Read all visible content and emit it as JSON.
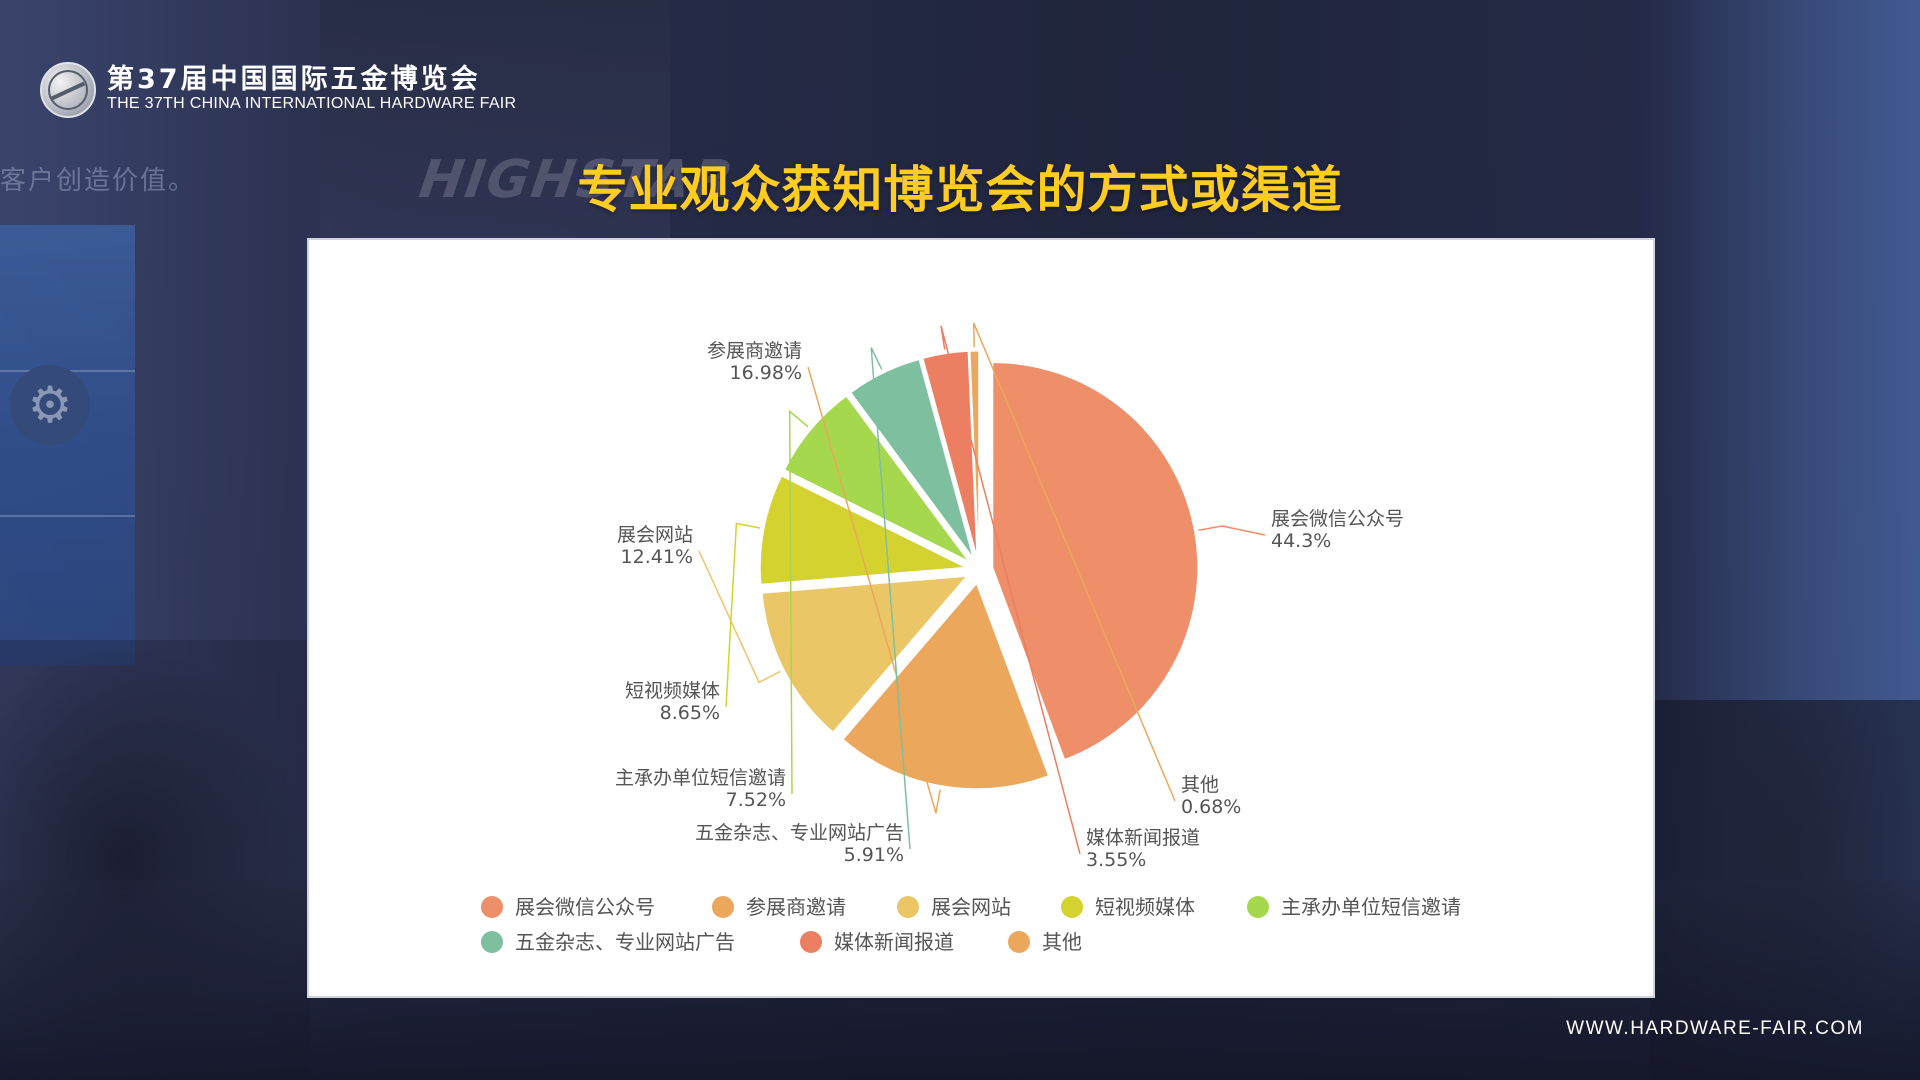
{
  "header": {
    "logo_cn": "第37届中国国际五金博览会",
    "logo_en": "THE 37TH CHINA INTERNATIONAL HARDWARE FAIR"
  },
  "background": {
    "slogan": "客户创造价值。",
    "brand": "HIGHSTAR"
  },
  "page_title": "专业观众获知博览会的方式或渠道",
  "footer": {
    "url": "WWW.HARDWARE-FAIR.COM"
  },
  "chart_data": {
    "type": "pie",
    "title": "",
    "legend_position": "bottom",
    "series": [
      {
        "name": "展会微信公众号",
        "value": 44.3,
        "display": "44.3%",
        "color": "#ee8f6a"
      },
      {
        "name": "参展商邀请",
        "value": 16.98,
        "display": "16.98%",
        "color": "#eba75c"
      },
      {
        "name": "展会网站",
        "value": 12.41,
        "display": "12.41%",
        "color": "#eac667"
      },
      {
        "name": "短视频媒体",
        "value": 8.65,
        "display": "8.65%",
        "color": "#d4d22f"
      },
      {
        "name": "主承办单位短信邀请",
        "value": 7.52,
        "display": "7.52%",
        "color": "#a5d84d"
      },
      {
        "name": "五金杂志、专业网站广告",
        "value": 5.91,
        "display": "5.91%",
        "color": "#7dbf9e"
      },
      {
        "name": "媒体新闻报道",
        "value": 3.55,
        "display": "3.55%",
        "color": "#ec7e62"
      },
      {
        "name": "其他",
        "value": 0.68,
        "display": "0.68%",
        "color": "#eba75c"
      }
    ]
  }
}
